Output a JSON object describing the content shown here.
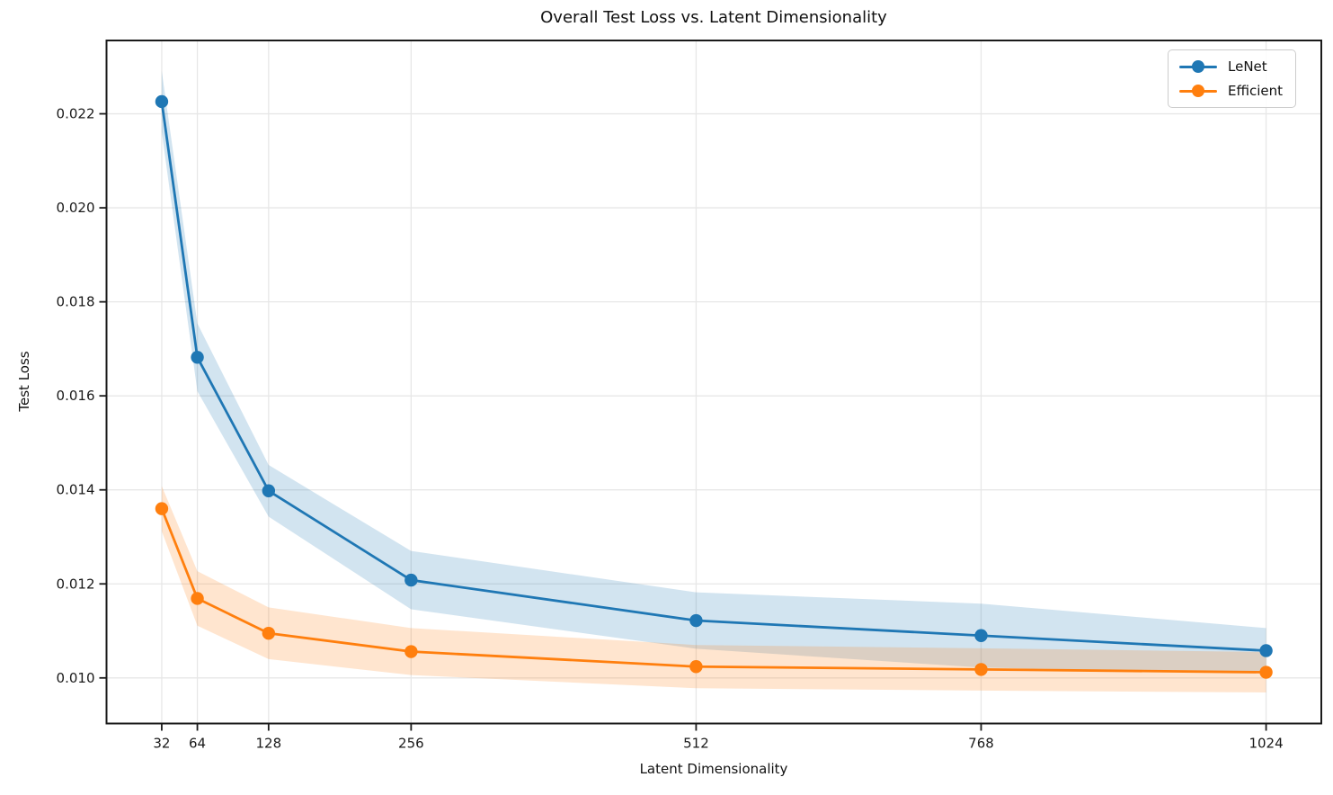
{
  "figure": {
    "title": "Overall Test Loss vs. Latent Dimensionality",
    "xlabel": "Latent Dimensionality",
    "ylabel": "Test Loss"
  },
  "legend": {
    "position": "upper right",
    "entries": [
      "LeNet",
      "Efficient"
    ]
  },
  "chart_data": {
    "type": "line",
    "title": "Overall Test Loss vs. Latent Dimensionality",
    "xlabel": "Latent Dimensionality",
    "ylabel": "Test Loss",
    "grid": true,
    "legend_position": "upper right",
    "x": [
      32,
      64,
      128,
      256,
      512,
      768,
      1024
    ],
    "x_tick_labels": [
      "32",
      "64",
      "128",
      "256",
      "512",
      "768",
      "1024"
    ],
    "y_ticks": [
      0.01,
      0.012,
      0.014,
      0.016,
      0.018,
      0.02,
      0.022
    ],
    "y_tick_labels": [
      "0.010",
      "0.012",
      "0.014",
      "0.016",
      "0.018",
      "0.020",
      "0.022"
    ],
    "xlim": [
      -17.6,
      1073.6
    ],
    "ylim": [
      0.00903,
      0.02356
    ],
    "band_alpha": 0.2,
    "series": [
      {
        "name": "LeNet",
        "color": "#1f77b4",
        "values": [
          0.02226,
          0.01682,
          0.01398,
          0.01208,
          0.01122,
          0.0109,
          0.01058
        ],
        "band_upper": [
          0.02291,
          0.01754,
          0.01453,
          0.0127,
          0.01182,
          0.01158,
          0.01106
        ],
        "band_lower": [
          0.02161,
          0.0161,
          0.01343,
          0.01146,
          0.01062,
          0.01022,
          0.0101
        ]
      },
      {
        "name": "Efficient",
        "color": "#ff7f0e",
        "values": [
          0.0136,
          0.01169,
          0.01095,
          0.01056,
          0.01024,
          0.01018,
          0.01012
        ],
        "band_upper": [
          0.01408,
          0.01227,
          0.0115,
          0.01106,
          0.0107,
          0.01063,
          0.01055
        ],
        "band_lower": [
          0.01312,
          0.01111,
          0.0104,
          0.01006,
          0.00978,
          0.00973,
          0.00969
        ]
      }
    ]
  }
}
